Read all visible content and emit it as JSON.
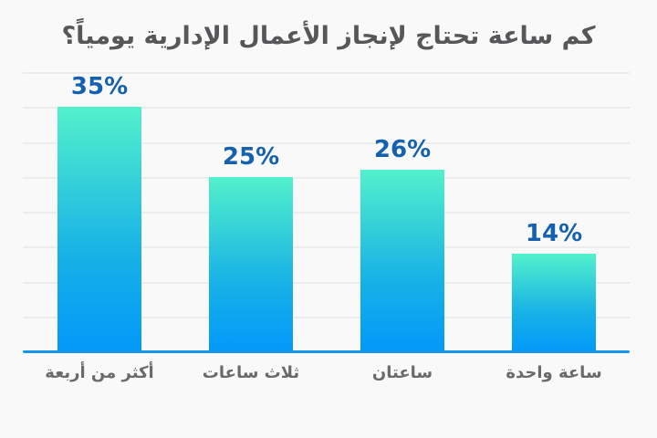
{
  "title": "كم ساعة تحتاج لإنجاز الأعمال الإدارية يومياً؟",
  "chart_data": {
    "type": "bar",
    "direction": "rtl",
    "title": "كم ساعة تحتاج لإنجاز الأعمال الإدارية يومياً؟",
    "categories": [
      "أكثر من أربعة",
      "ثلاث ساعات",
      "ساعتان",
      "ساعة واحدة"
    ],
    "values": [
      35,
      25,
      26,
      14
    ],
    "value_labels": [
      "35%",
      "25%",
      "26%",
      "14%"
    ],
    "xlabel": "",
    "ylabel": "",
    "ylim": [
      0,
      40
    ],
    "gridline_step_percent": 5,
    "grid": true,
    "legend": false,
    "colors": {
      "background": "#f9f9f9",
      "title": "#57575a",
      "bar_gradient_top": "#52f1cb",
      "bar_gradient_bottom": "#0299f9",
      "axis_line": "#1197ee",
      "value_label": "#1461af",
      "category_label": "#6a6a6a",
      "gridline": "#ececec"
    }
  }
}
